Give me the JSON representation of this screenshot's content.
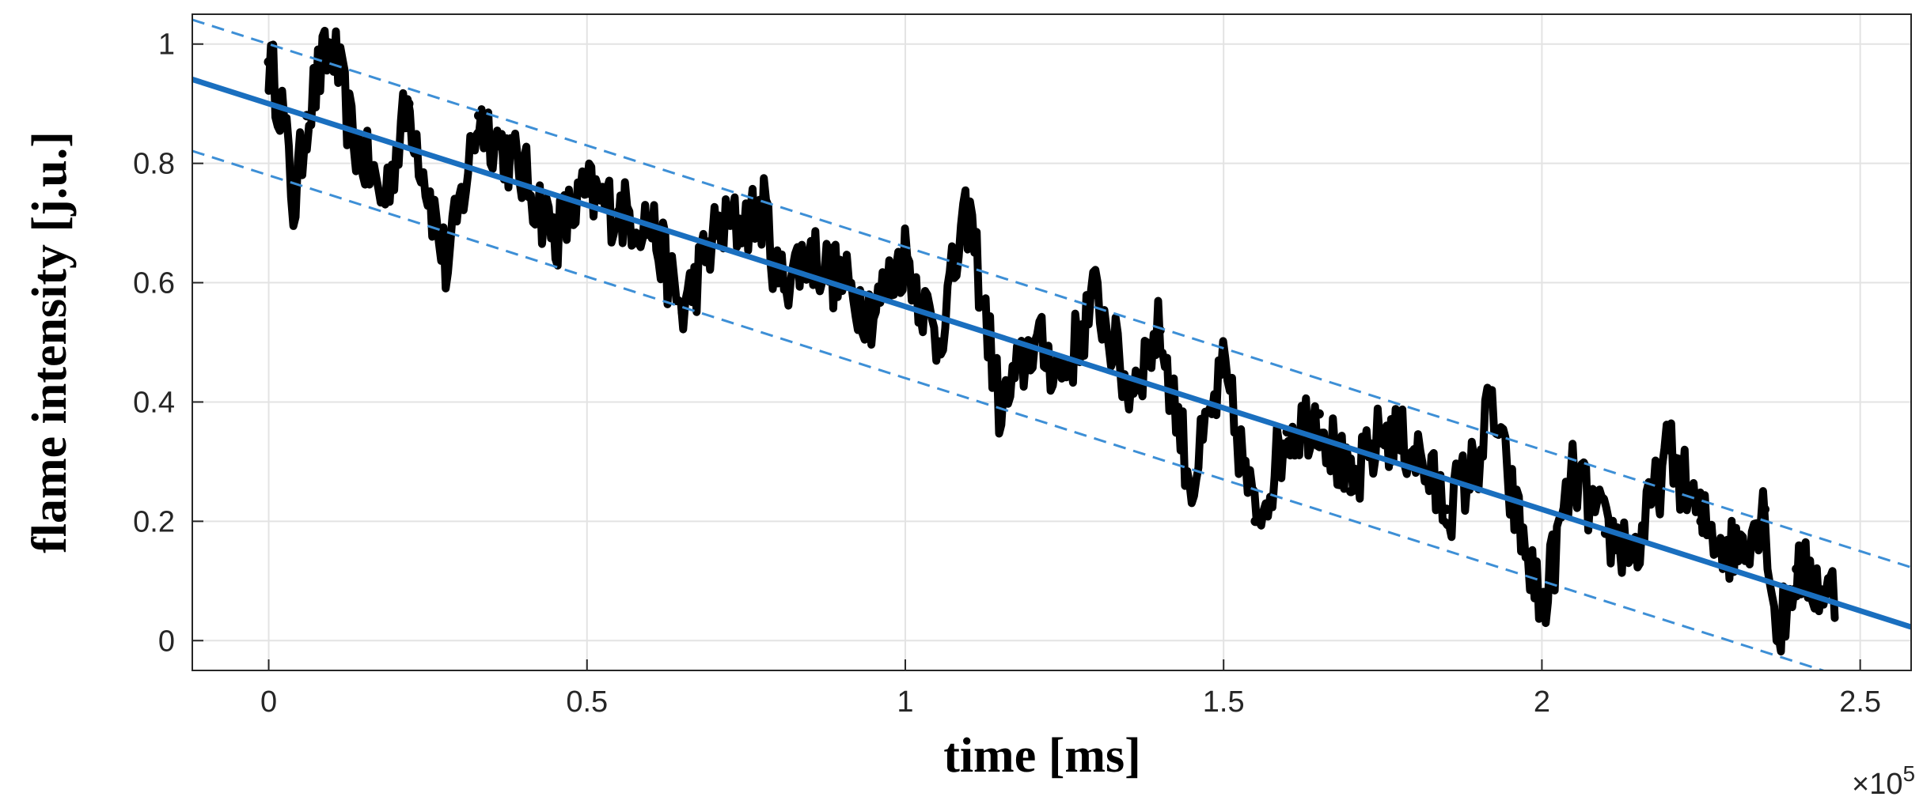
{
  "chart_data": {
    "type": "scatter",
    "xlabel": "time [ms]",
    "ylabel": "flame intensity [j.u.]",
    "xlim": [
      -12000,
      258000
    ],
    "ylim": [
      -0.05,
      1.05
    ],
    "x_scale_factor": 100000,
    "x_exponent_label": "×10",
    "x_exponent_power": "5",
    "x_ticks": [
      0,
      50000,
      100000,
      150000,
      200000,
      250000
    ],
    "x_tick_labels": [
      "0",
      "0.5",
      "1",
      "1.5",
      "2",
      "2.5"
    ],
    "y_ticks": [
      0,
      0.2,
      0.4,
      0.6,
      0.8,
      1.0
    ],
    "y_tick_labels": [
      "0",
      "0.2",
      "0.4",
      "0.6",
      "0.8",
      "1"
    ],
    "grid": true,
    "legend": false,
    "colors": {
      "data": "#000000",
      "fit": "#1a6fbf",
      "bounds": "#3d8fd6",
      "grid": "#e3e3e3",
      "axis": "#262626"
    },
    "series": [
      {
        "kind": "measurement",
        "style": "black-markers",
        "x_start": 0,
        "x_end": 246000,
        "sample_count": 700,
        "representative_points": [
          [
            0,
            0.97
          ],
          [
            2000,
            0.9
          ],
          [
            4000,
            0.72
          ],
          [
            6000,
            0.88
          ],
          [
            8000,
            0.95
          ],
          [
            10000,
            1.0
          ],
          [
            13000,
            0.85
          ],
          [
            18000,
            0.74
          ],
          [
            22000,
            0.9
          ],
          [
            28000,
            0.62
          ],
          [
            33000,
            0.88
          ],
          [
            40000,
            0.78
          ],
          [
            45000,
            0.68
          ],
          [
            50000,
            0.75
          ],
          [
            55000,
            0.72
          ],
          [
            60000,
            0.7
          ],
          [
            65000,
            0.55
          ],
          [
            70000,
            0.68
          ],
          [
            78000,
            0.72
          ],
          [
            80000,
            0.6
          ],
          [
            85000,
            0.65
          ],
          [
            90000,
            0.6
          ],
          [
            95000,
            0.55
          ],
          [
            100000,
            0.65
          ],
          [
            105000,
            0.5
          ],
          [
            110000,
            0.72
          ],
          [
            115000,
            0.38
          ],
          [
            120000,
            0.5
          ],
          [
            125000,
            0.45
          ],
          [
            130000,
            0.58
          ],
          [
            135000,
            0.42
          ],
          [
            140000,
            0.52
          ],
          [
            145000,
            0.26
          ],
          [
            150000,
            0.45
          ],
          [
            155000,
            0.2
          ],
          [
            160000,
            0.35
          ],
          [
            165000,
            0.38
          ],
          [
            170000,
            0.25
          ],
          [
            175000,
            0.35
          ],
          [
            180000,
            0.32
          ],
          [
            185000,
            0.22
          ],
          [
            190000,
            0.3
          ],
          [
            192000,
            0.4
          ],
          [
            195000,
            0.25
          ],
          [
            200000,
            0.05
          ],
          [
            205000,
            0.28
          ],
          [
            210000,
            0.18
          ],
          [
            215000,
            0.15
          ],
          [
            220000,
            0.32
          ],
          [
            225000,
            0.2
          ],
          [
            230000,
            0.15
          ],
          [
            235000,
            0.22
          ],
          [
            237000,
            0.0
          ],
          [
            240000,
            0.12
          ],
          [
            245000,
            0.08
          ]
        ]
      },
      {
        "kind": "linear-fit",
        "style": "solid-blue",
        "slope": -3.4e-06,
        "intercept": 0.9
      },
      {
        "kind": "upper-bound",
        "style": "dashed-blue",
        "slope": -3.4e-06,
        "intercept": 1.0
      },
      {
        "kind": "lower-bound",
        "style": "dashed-blue",
        "slope": -3.4e-06,
        "intercept": 0.78
      }
    ]
  }
}
